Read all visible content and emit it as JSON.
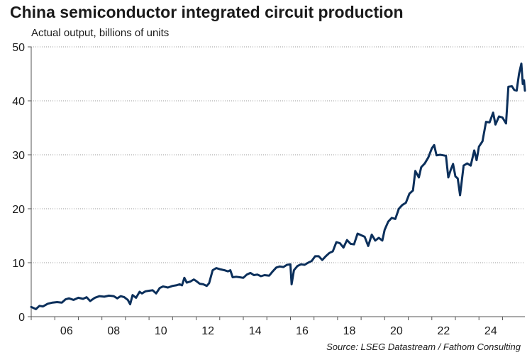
{
  "chart_data": {
    "type": "line",
    "title": "China semiconductor integrated circuit production",
    "subtitle": "Actual output, billions of units",
    "source": "Source: LSEG Datastream / Fathom Consulting",
    "ylim": [
      0,
      50
    ],
    "xlim": [
      2005.0,
      2025.95
    ],
    "y_ticks": [
      {
        "value": 0,
        "label": "0"
      },
      {
        "value": 10,
        "label": "10"
      },
      {
        "value": 20,
        "label": "20"
      },
      {
        "value": 30,
        "label": "30"
      },
      {
        "value": 40,
        "label": "40"
      },
      {
        "value": 50,
        "label": "50"
      }
    ],
    "x_ticks": [
      {
        "value": 2006,
        "label": "06"
      },
      {
        "value": 2008,
        "label": "08"
      },
      {
        "value": 2010,
        "label": "10"
      },
      {
        "value": 2012,
        "label": "12"
      },
      {
        "value": 2014,
        "label": "14"
      },
      {
        "value": 2016,
        "label": "16"
      },
      {
        "value": 2018,
        "label": "18"
      },
      {
        "value": 2020,
        "label": "20"
      },
      {
        "value": 2022,
        "label": "22"
      },
      {
        "value": 2024,
        "label": "24"
      }
    ],
    "grid": true,
    "line_color": "#0b2f5b",
    "series": [
      {
        "points": [
          [
            2005.0,
            1.8
          ],
          [
            2005.2,
            1.4
          ],
          [
            2005.35,
            2.0
          ],
          [
            2005.5,
            1.9
          ],
          [
            2005.7,
            2.4
          ],
          [
            2005.9,
            2.6
          ],
          [
            2006.1,
            2.7
          ],
          [
            2006.3,
            2.6
          ],
          [
            2006.45,
            3.2
          ],
          [
            2006.6,
            3.4
          ],
          [
            2006.8,
            3.1
          ],
          [
            2007.0,
            3.5
          ],
          [
            2007.2,
            3.3
          ],
          [
            2007.35,
            3.6
          ],
          [
            2007.5,
            2.9
          ],
          [
            2007.7,
            3.5
          ],
          [
            2007.9,
            3.8
          ],
          [
            2008.1,
            3.7
          ],
          [
            2008.3,
            3.9
          ],
          [
            2008.5,
            3.8
          ],
          [
            2008.65,
            3.4
          ],
          [
            2008.8,
            3.8
          ],
          [
            2008.95,
            3.6
          ],
          [
            2009.1,
            3.1
          ],
          [
            2009.2,
            2.3
          ],
          [
            2009.3,
            4.0
          ],
          [
            2009.45,
            3.5
          ],
          [
            2009.6,
            4.6
          ],
          [
            2009.7,
            4.3
          ],
          [
            2009.85,
            4.7
          ],
          [
            2010.0,
            4.8
          ],
          [
            2010.15,
            4.9
          ],
          [
            2010.3,
            4.3
          ],
          [
            2010.45,
            5.3
          ],
          [
            2010.6,
            5.6
          ],
          [
            2010.8,
            5.4
          ],
          [
            2011.0,
            5.7
          ],
          [
            2011.15,
            5.8
          ],
          [
            2011.3,
            6.0
          ],
          [
            2011.4,
            5.8
          ],
          [
            2011.5,
            7.2
          ],
          [
            2011.6,
            6.3
          ],
          [
            2011.75,
            6.5
          ],
          [
            2011.9,
            6.9
          ],
          [
            2012.0,
            6.6
          ],
          [
            2012.15,
            6.1
          ],
          [
            2012.3,
            6.0
          ],
          [
            2012.45,
            5.7
          ],
          [
            2012.55,
            6.2
          ],
          [
            2012.7,
            8.6
          ],
          [
            2012.85,
            9.0
          ],
          [
            2013.0,
            8.8
          ],
          [
            2013.2,
            8.6
          ],
          [
            2013.35,
            8.4
          ],
          [
            2013.45,
            8.6
          ],
          [
            2013.55,
            7.3
          ],
          [
            2013.7,
            7.4
          ],
          [
            2013.85,
            7.3
          ],
          [
            2014.0,
            7.2
          ],
          [
            2014.15,
            7.8
          ],
          [
            2014.3,
            8.1
          ],
          [
            2014.45,
            7.7
          ],
          [
            2014.6,
            7.8
          ],
          [
            2014.75,
            7.5
          ],
          [
            2014.9,
            7.7
          ],
          [
            2015.1,
            7.6
          ],
          [
            2015.25,
            8.4
          ],
          [
            2015.4,
            9.1
          ],
          [
            2015.55,
            9.3
          ],
          [
            2015.7,
            9.2
          ],
          [
            2015.85,
            9.6
          ],
          [
            2016.0,
            9.7
          ],
          [
            2016.05,
            6.0
          ],
          [
            2016.15,
            8.6
          ],
          [
            2016.3,
            9.4
          ],
          [
            2016.45,
            9.7
          ],
          [
            2016.6,
            9.6
          ],
          [
            2016.75,
            10.0
          ],
          [
            2016.9,
            10.3
          ],
          [
            2017.05,
            11.2
          ],
          [
            2017.2,
            11.2
          ],
          [
            2017.35,
            10.5
          ],
          [
            2017.5,
            11.2
          ],
          [
            2017.65,
            11.8
          ],
          [
            2017.8,
            12.1
          ],
          [
            2017.95,
            13.8
          ],
          [
            2018.1,
            13.6
          ],
          [
            2018.25,
            12.8
          ],
          [
            2018.4,
            14.2
          ],
          [
            2018.55,
            13.5
          ],
          [
            2018.7,
            13.4
          ],
          [
            2018.85,
            15.4
          ],
          [
            2019.0,
            15.1
          ],
          [
            2019.15,
            14.8
          ],
          [
            2019.3,
            13.1
          ],
          [
            2019.45,
            15.2
          ],
          [
            2019.6,
            14.1
          ],
          [
            2019.75,
            14.6
          ],
          [
            2019.9,
            14.1
          ],
          [
            2020.0,
            16.1
          ],
          [
            2020.15,
            17.6
          ],
          [
            2020.3,
            18.3
          ],
          [
            2020.45,
            18.1
          ],
          [
            2020.6,
            20.0
          ],
          [
            2020.75,
            20.7
          ],
          [
            2020.9,
            21.1
          ],
          [
            2021.05,
            22.8
          ],
          [
            2021.2,
            23.4
          ],
          [
            2021.3,
            27.0
          ],
          [
            2021.45,
            25.8
          ],
          [
            2021.55,
            27.7
          ],
          [
            2021.7,
            28.4
          ],
          [
            2021.85,
            29.5
          ],
          [
            2022.0,
            31.2
          ],
          [
            2022.1,
            31.8
          ],
          [
            2022.2,
            29.9
          ],
          [
            2022.35,
            30.0
          ],
          [
            2022.5,
            29.9
          ],
          [
            2022.6,
            29.8
          ],
          [
            2022.7,
            25.8
          ],
          [
            2022.8,
            27.2
          ],
          [
            2022.9,
            28.3
          ],
          [
            2023.0,
            26.0
          ],
          [
            2023.1,
            25.6
          ],
          [
            2023.2,
            22.5
          ],
          [
            2023.35,
            28.0
          ],
          [
            2023.5,
            28.4
          ],
          [
            2023.65,
            28.0
          ],
          [
            2023.8,
            30.8
          ],
          [
            2023.9,
            29.0
          ],
          [
            2024.0,
            31.5
          ],
          [
            2024.15,
            32.5
          ],
          [
            2024.3,
            36.1
          ],
          [
            2024.45,
            36.0
          ],
          [
            2024.6,
            37.8
          ],
          [
            2024.7,
            35.6
          ],
          [
            2024.85,
            37.1
          ],
          [
            2025.0,
            36.9
          ],
          [
            2025.15,
            35.8
          ],
          [
            2025.25,
            42.6
          ],
          [
            2025.4,
            42.7
          ],
          [
            2025.5,
            42.0
          ],
          [
            2025.6,
            41.9
          ],
          [
            2025.7,
            45.0
          ],
          [
            2025.8,
            46.9
          ],
          [
            2025.86,
            43.1
          ],
          [
            2025.91,
            43.8
          ],
          [
            2025.95,
            41.9
          ]
        ]
      }
    ]
  }
}
